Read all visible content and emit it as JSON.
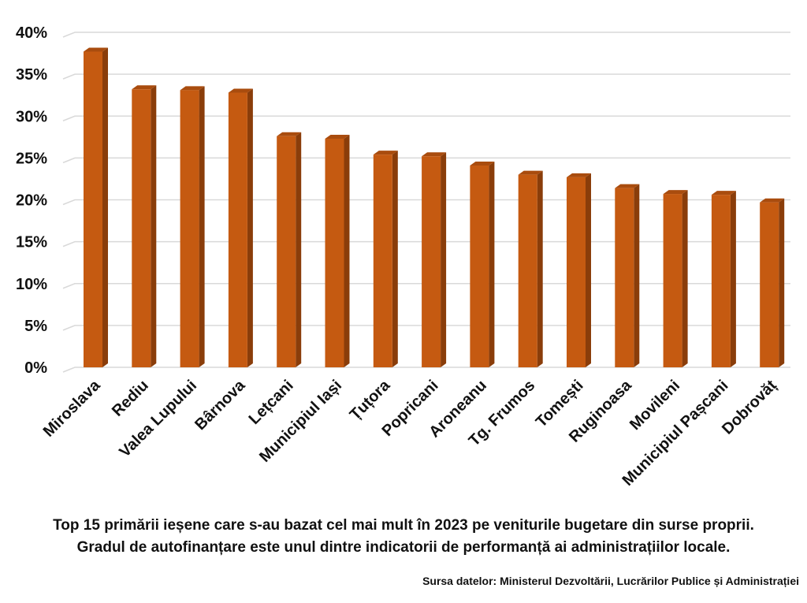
{
  "chart_data": {
    "type": "bar",
    "categories": [
      "Miroslava",
      "Rediu",
      "Valea Lupului",
      "Bârnova",
      "Lețcani",
      "Municipiul Iași",
      "Țuțora",
      "Popricani",
      "Aroneanu",
      "Tg. Frumos",
      "Tomești",
      "Ruginoasa",
      "Movileni",
      "Municipiul Pașcani",
      "Dobrovăț"
    ],
    "values": [
      37.7,
      33.2,
      33.1,
      32.8,
      27.6,
      27.3,
      25.4,
      25.2,
      24.1,
      23.0,
      22.7,
      21.4,
      20.7,
      20.6,
      19.7
    ],
    "yticks": [
      "0%",
      "5%",
      "10%",
      "15%",
      "20%",
      "25%",
      "30%",
      "35%",
      "40%"
    ],
    "ylim": [
      0,
      40
    ],
    "grid": true,
    "legend": "none"
  },
  "caption": {
    "line1": "Top 15 primării ieșene care s-au bazat cel mai mult în 2023 pe veniturile bugetare din surse proprii.",
    "line2": "Gradul de autofinanțare este unul dintre indicatorii de performanță ai administrațiilor locale."
  },
  "source": "Sursa datelor: Ministerul Dezvoltării, Lucrărilor Publice și Administrației",
  "colors": {
    "bar_front": "#C55A11",
    "bar_side": "#8A3D0A",
    "bar_top": "#A94C0E",
    "grid": "#D9D9D9"
  }
}
